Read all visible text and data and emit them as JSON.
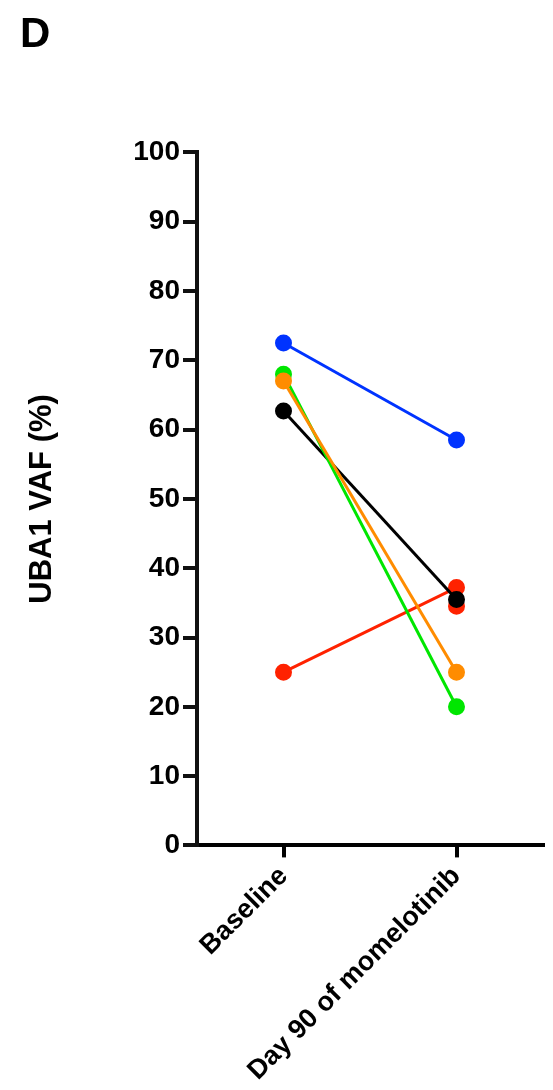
{
  "chart_data": {
    "type": "line",
    "title": "D",
    "ylabel": "UBA1 VAF (%)",
    "categories": [
      "Baseline",
      "Day 90 of momelotinib"
    ],
    "series": [
      {
        "color": "#0033ff",
        "values": [
          72.5,
          58.5
        ]
      },
      {
        "color": "#ff8c00",
        "values": [
          67,
          25
        ]
      },
      {
        "color": "#00e600",
        "values": [
          68,
          20
        ]
      },
      {
        "color": "#000000",
        "values": [
          62.7,
          35.5
        ]
      },
      {
        "color": "#ff2200",
        "values": [
          25,
          37.2
        ]
      },
      {
        "color": "#ff2200",
        "values": [
          null,
          34.5
        ]
      }
    ],
    "ylim": [
      0,
      100
    ],
    "yticks": [
      0,
      10,
      20,
      30,
      40,
      50,
      60,
      70,
      80,
      90,
      100
    ],
    "grid": false,
    "legend": false,
    "marker": "circle",
    "line_style": "solid"
  }
}
